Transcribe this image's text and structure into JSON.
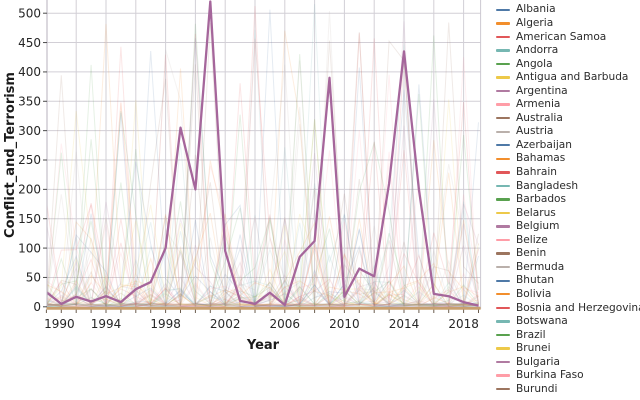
{
  "chart_data": {
    "type": "line",
    "title": "",
    "xlabel": "Year",
    "ylabel": "Conflict_and_Terrorism",
    "xlim": [
      1990,
      2019.2
    ],
    "ylim": [
      0,
      522
    ],
    "grid": true,
    "legend_position": "right-outside",
    "x_tick_labels": [
      "1990",
      "1994",
      "1998",
      "2002",
      "2006",
      "2010",
      "2014",
      "2018"
    ],
    "y_ticks": [
      0,
      50,
      100,
      150,
      200,
      250,
      300,
      350,
      400,
      450,
      500
    ],
    "x": [
      1990,
      1991,
      1992,
      1993,
      1994,
      1995,
      1996,
      1997,
      1998,
      1999,
      2000,
      2001,
      2002,
      2003,
      2004,
      2005,
      2006,
      2007,
      2008,
      2009,
      2010,
      2011,
      2012,
      2013,
      2014,
      2015,
      2016,
      2017,
      2018,
      2019
    ],
    "highlighted_series": {
      "color": "#a5669b",
      "values": [
        25,
        5,
        17,
        9,
        18,
        8,
        30,
        42,
        100,
        305,
        200,
        520,
        95,
        10,
        5,
        24,
        3,
        85,
        112,
        390,
        17,
        65,
        52,
        210,
        435,
        200,
        22,
        18,
        8,
        2
      ]
    },
    "background_series": {
      "count": 52,
      "opacity": 0.15,
      "seed": 11
    }
  },
  "palette": [
    "#4e79a7",
    "#f28e2c",
    "#e15759",
    "#76b7b2",
    "#59a14f",
    "#edc949",
    "#b07aa1",
    "#ff9da7",
    "#9c755f",
    "#bab0ab"
  ],
  "legend": {
    "entries": [
      {
        "label": "Albania",
        "color": "#4e79a7"
      },
      {
        "label": "Algeria",
        "color": "#f28e2c"
      },
      {
        "label": "American Samoa",
        "color": "#e15759"
      },
      {
        "label": "Andorra",
        "color": "#76b7b2"
      },
      {
        "label": "Angola",
        "color": "#59a14f"
      },
      {
        "label": "Antigua and Barbuda",
        "color": "#edc949"
      },
      {
        "label": "Argentina",
        "color": "#b07aa1"
      },
      {
        "label": "Armenia",
        "color": "#ff9da7"
      },
      {
        "label": "Australia",
        "color": "#9c755f"
      },
      {
        "label": "Austria",
        "color": "#bab0ab"
      },
      {
        "label": "Azerbaijan",
        "color": "#4e79a7"
      },
      {
        "label": "Bahamas",
        "color": "#f28e2c"
      },
      {
        "label": "Bahrain",
        "color": "#e15759"
      },
      {
        "label": "Bangladesh",
        "color": "#76b7b2"
      },
      {
        "label": "Barbados",
        "color": "#59a14f"
      },
      {
        "label": "Belarus",
        "color": "#edc949"
      },
      {
        "label": "Belgium",
        "color": "#b07aa1"
      },
      {
        "label": "Belize",
        "color": "#ff9da7"
      },
      {
        "label": "Benin",
        "color": "#9c755f"
      },
      {
        "label": "Bermuda",
        "color": "#bab0ab"
      },
      {
        "label": "Bhutan",
        "color": "#4e79a7"
      },
      {
        "label": "Bolivia",
        "color": "#f28e2c"
      },
      {
        "label": "Bosnia and Herzegovina",
        "color": "#e15759"
      },
      {
        "label": "Botswana",
        "color": "#76b7b2"
      },
      {
        "label": "Brazil",
        "color": "#59a14f"
      },
      {
        "label": "Brunei",
        "color": "#edc949"
      },
      {
        "label": "Bulgaria",
        "color": "#b07aa1"
      },
      {
        "label": "Burkina Faso",
        "color": "#ff9da7"
      },
      {
        "label": "Burundi",
        "color": "#9c755f"
      }
    ]
  }
}
